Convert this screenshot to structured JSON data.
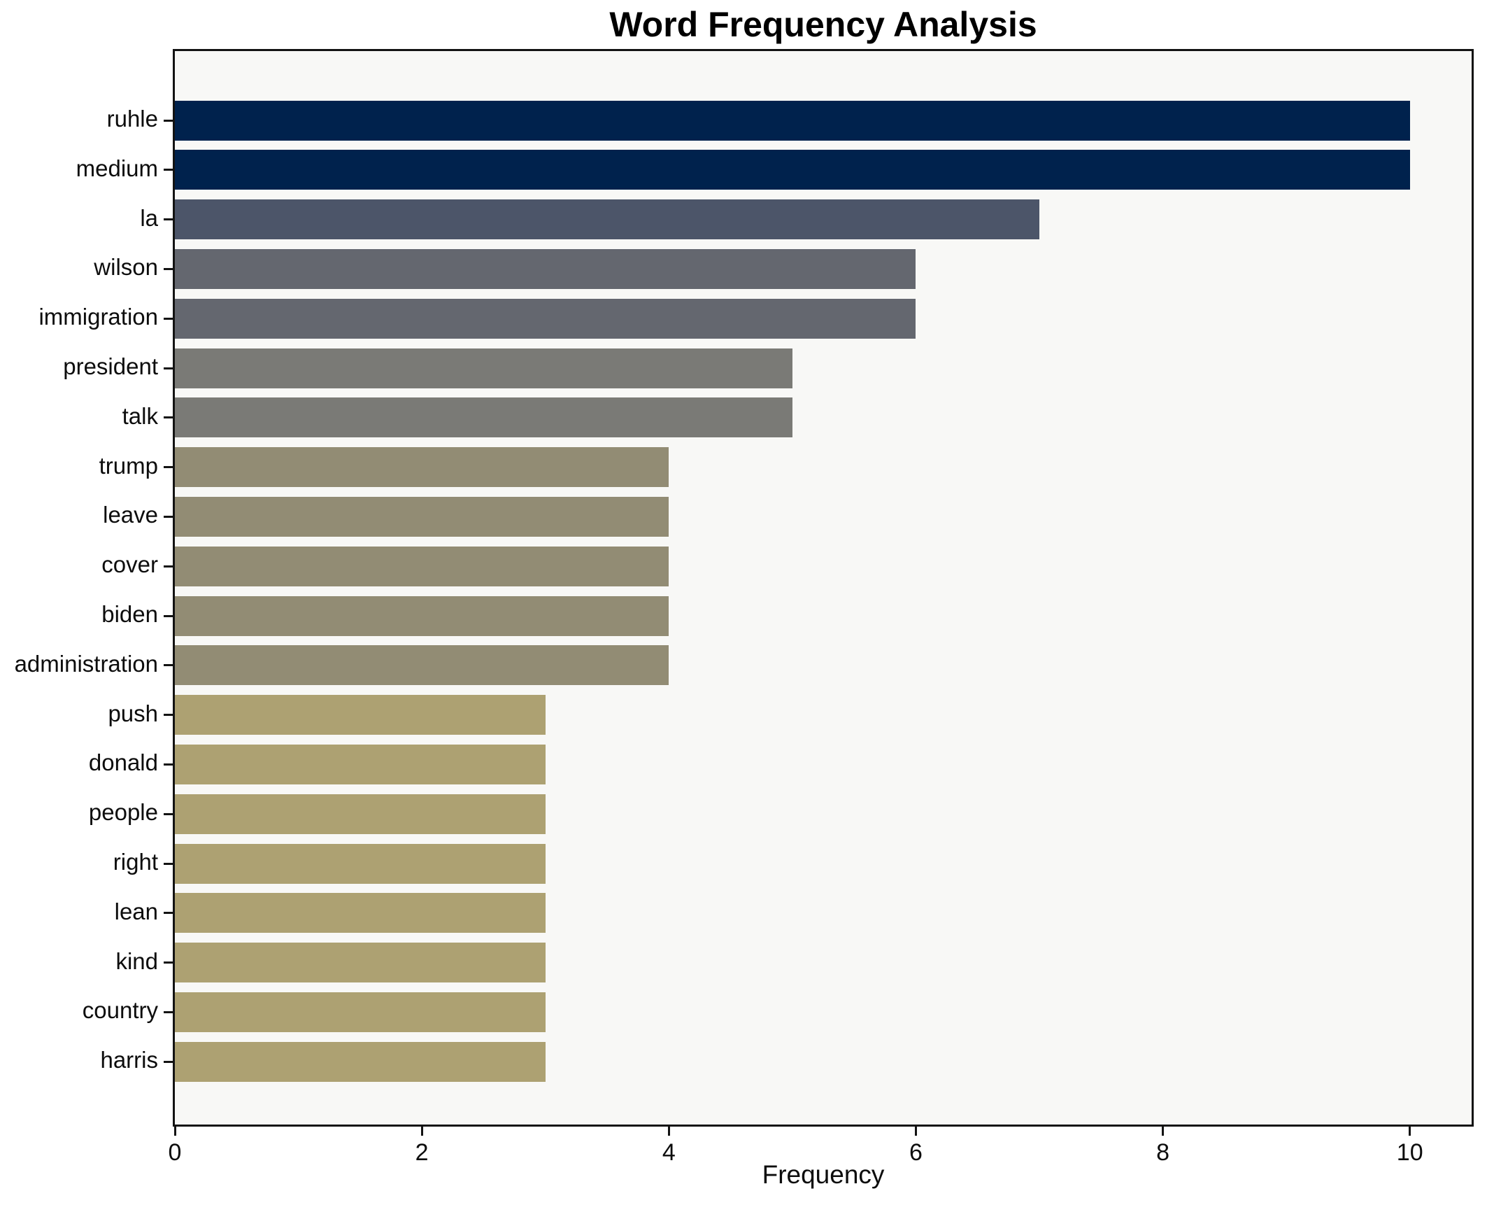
{
  "chart_data": {
    "type": "bar",
    "orientation": "horizontal",
    "title": "Word Frequency Analysis",
    "xlabel": "Frequency",
    "ylabel": "",
    "categories": [
      "ruhle",
      "medium",
      "la",
      "wilson",
      "immigration",
      "president",
      "talk",
      "trump",
      "leave",
      "cover",
      "biden",
      "administration",
      "push",
      "donald",
      "people",
      "right",
      "lean",
      "kind",
      "country",
      "harris"
    ],
    "values": [
      10,
      10,
      7,
      6,
      6,
      5,
      5,
      4,
      4,
      4,
      4,
      4,
      3,
      3,
      3,
      3,
      3,
      3,
      3,
      3
    ],
    "bar_colors": [
      "#00224d",
      "#00224d",
      "#4c5569",
      "#64676f",
      "#64676f",
      "#7a7a76",
      "#7a7a76",
      "#928c74",
      "#928c74",
      "#928c74",
      "#928c74",
      "#928c74",
      "#ada172",
      "#ada172",
      "#ada172",
      "#ada172",
      "#ada172",
      "#ada172",
      "#ada172",
      "#ada172"
    ],
    "xlim": [
      0,
      10.5
    ],
    "xticks": [
      0,
      2,
      4,
      6,
      8,
      10
    ],
    "grid": false,
    "legend": null,
    "plot_background": "#f8f8f6",
    "figure_background": "#ffffff",
    "spine_color": "#131313"
  }
}
